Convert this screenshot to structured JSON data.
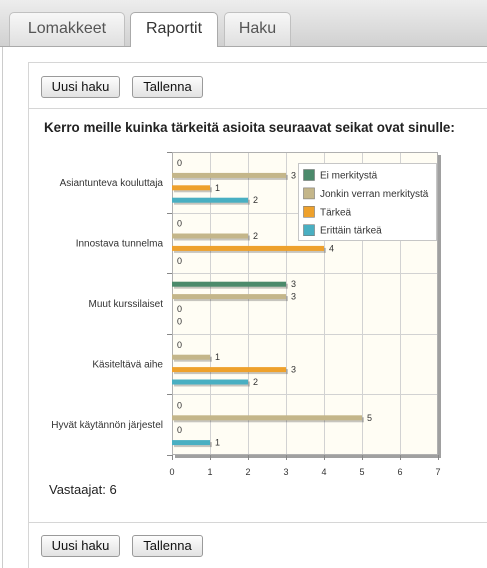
{
  "tabs": [
    {
      "label": "Lomakkeet",
      "active": false
    },
    {
      "label": "Raportit",
      "active": true
    },
    {
      "label": "Haku",
      "active": false
    }
  ],
  "toolbar_top": {
    "new_search_label": "Uusi haku",
    "save_label": "Tallenna"
  },
  "report": {
    "question": "Kerro meille kuinka tärkeitä asioita seuraavat seikat ovat sinulle:",
    "respondents_label": "Vastaajat:",
    "respondents_count": 6
  },
  "toolbar_bottom": {
    "new_search_label": "Uusi haku",
    "save_label": "Tallenna"
  },
  "chart_data": {
    "type": "bar",
    "orientation": "horizontal",
    "categories": [
      "Asiantunteva kouluttaja",
      "Innostava tunnelma",
      "Muut kurssilaiset",
      "Käsiteltävä aihe",
      "Hyvät käytännön järjestel"
    ],
    "series": [
      {
        "name": "Ei merkitystä",
        "color": "#4b8a6b",
        "values": [
          0,
          0,
          3,
          0,
          0
        ]
      },
      {
        "name": "Jonkin verran merkitystä",
        "color": "#c4b68a",
        "values": [
          3,
          2,
          3,
          1,
          5
        ]
      },
      {
        "name": "Tärkeä",
        "color": "#eea12c",
        "values": [
          1,
          4,
          0,
          3,
          0
        ]
      },
      {
        "name": "Erittäin tärkeä",
        "color": "#49afc2",
        "values": [
          2,
          0,
          0,
          2,
          1
        ]
      }
    ],
    "xlim": [
      0,
      7
    ],
    "x_ticks": [
      0,
      1,
      2,
      3,
      4,
      5,
      6,
      7
    ],
    "grid": true,
    "data_labels": true,
    "legend_position": "top-right"
  }
}
